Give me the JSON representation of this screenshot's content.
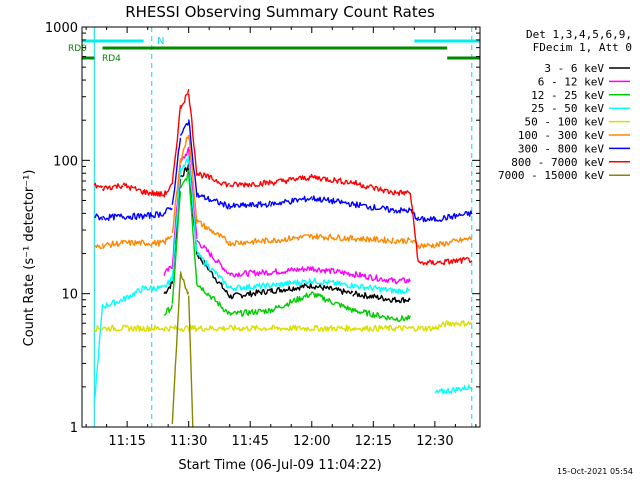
{
  "chart_data": {
    "type": "line",
    "title": "RHESSI Observing Summary Count Rates",
    "xlabel": "Start Time (06-Jul-09 11:04:22)",
    "ylabel": "Count Rate (s⁻¹ detector⁻¹)",
    "yscale": "log",
    "ylim": [
      1,
      1000
    ],
    "xlim": [
      "11:04",
      "12:41"
    ],
    "x_ticks": [
      "11:15",
      "11:30",
      "11:45",
      "12:00",
      "12:15",
      "12:30"
    ],
    "y_ticks": [
      "1",
      "10",
      "100",
      "1000"
    ],
    "grid": false,
    "legend_position": "right",
    "legend_header": [
      "Det 1,3,4,5,6,9,",
      "FDecim 1, Att 0"
    ],
    "series": [
      {
        "name": "3 - 6 keV",
        "color": "#000000",
        "x": [
          "11:07",
          "11:19",
          "11:24",
          "11:26",
          "11:28",
          "11:30",
          "11:32",
          "11:40",
          "11:50",
          "12:00",
          "12:10",
          "12:20",
          "12:24",
          "12:26",
          "12:30",
          "12:39"
        ],
        "y": [
          null,
          null,
          10,
          12,
          75,
          90,
          20,
          9.5,
          10.5,
          11.5,
          10,
          9,
          9,
          null,
          null,
          null
        ]
      },
      {
        "name": "6 - 12 keV",
        "color": "#ff00ff",
        "x": [
          "11:07",
          "11:19",
          "11:24",
          "11:26",
          "11:28",
          "11:30",
          "11:32",
          "11:40",
          "11:50",
          "12:00",
          "12:10",
          "12:20",
          "12:24",
          "12:26",
          "12:30",
          "12:39"
        ],
        "y": [
          null,
          null,
          14,
          16,
          95,
          120,
          25,
          14,
          14.5,
          15.5,
          14,
          12.5,
          12.5,
          null,
          null,
          null
        ]
      },
      {
        "name": "12 - 25 keV",
        "color": "#00cc00",
        "x": [
          "11:07",
          "11:19",
          "11:24",
          "11:26",
          "11:28",
          "11:30",
          "11:32",
          "11:40",
          "11:50",
          "12:00",
          "12:10",
          "12:20",
          "12:24",
          "12:26",
          "12:30",
          "12:39"
        ],
        "y": [
          null,
          null,
          7,
          8,
          60,
          80,
          12,
          7,
          7.5,
          10,
          7.5,
          6.5,
          6.5,
          null,
          null,
          null
        ]
      },
      {
        "name": "25 - 50 keV",
        "color": "#00ffff",
        "x": [
          "11:07",
          "11:09",
          "11:14",
          "11:19",
          "11:24",
          "11:26",
          "11:28",
          "11:30",
          "11:32",
          "11:40",
          "11:50",
          "12:00",
          "12:10",
          "12:20",
          "12:24",
          "12:26",
          "12:30",
          "12:39"
        ],
        "y": [
          1.5,
          8,
          9,
          11,
          11,
          13,
          85,
          105,
          20,
          11,
          11.5,
          12.5,
          11.5,
          10.5,
          10.5,
          null,
          1.8,
          2
        ]
      },
      {
        "name": "50 - 100 keV",
        "color": "#dddd00",
        "x": [
          "11:07",
          "11:09",
          "12:30",
          "12:33",
          "12:39"
        ],
        "y": [
          5.5,
          5.5,
          5.5,
          6,
          6
        ]
      },
      {
        "name": "100 - 300 keV",
        "color": "#ff8800",
        "x": [
          "11:07",
          "11:09",
          "11:14",
          "11:19",
          "11:24",
          "11:26",
          "11:28",
          "11:30",
          "11:32",
          "11:40",
          "11:50",
          "12:00",
          "12:10",
          "12:20",
          "12:24",
          "12:26",
          "12:30",
          "12:39"
        ],
        "y": [
          22,
          23,
          24,
          24,
          24,
          28,
          100,
          160,
          35,
          24,
          25,
          27,
          26,
          25,
          25,
          23,
          23,
          26
        ]
      },
      {
        "name": "300 - 800 keV",
        "color": "#0000ff",
        "x": [
          "11:07",
          "11:09",
          "11:14",
          "11:19",
          "11:24",
          "11:26",
          "11:28",
          "11:30",
          "11:32",
          "11:40",
          "11:50",
          "12:00",
          "12:10",
          "12:20",
          "12:24",
          "12:26",
          "12:30",
          "12:39"
        ],
        "y": [
          38,
          37,
          38,
          38,
          40,
          45,
          150,
          200,
          55,
          45,
          47,
          52,
          47,
          42,
          42,
          36,
          36,
          40
        ]
      },
      {
        "name": "800 - 7000 keV",
        "color": "#ff0000",
        "x": [
          "11:07",
          "11:09",
          "11:14",
          "11:19",
          "11:24",
          "11:26",
          "11:28",
          "11:30",
          "11:32",
          "11:40",
          "11:50",
          "12:00",
          "12:10",
          "12:20",
          "12:24",
          "12:26",
          "12:30",
          "12:39"
        ],
        "y": [
          65,
          62,
          65,
          58,
          55,
          65,
          250,
          330,
          80,
          65,
          68,
          75,
          68,
          57,
          57,
          17,
          17,
          18
        ]
      },
      {
        "name": "7000 - 15000 keV",
        "color": "#888800",
        "x": [
          "11:24",
          "11:26",
          "11:28",
          "11:30",
          "11:31",
          "11:32"
        ],
        "y": [
          null,
          1,
          14,
          10,
          1,
          null
        ]
      }
    ],
    "annotations": [
      {
        "text": "RD0",
        "color": "#008800"
      },
      {
        "text": "RD4",
        "color": "#008800"
      },
      {
        "text": "N",
        "color": "#00dddd"
      }
    ],
    "timestamp": "15-Oct-2021 05:54"
  }
}
